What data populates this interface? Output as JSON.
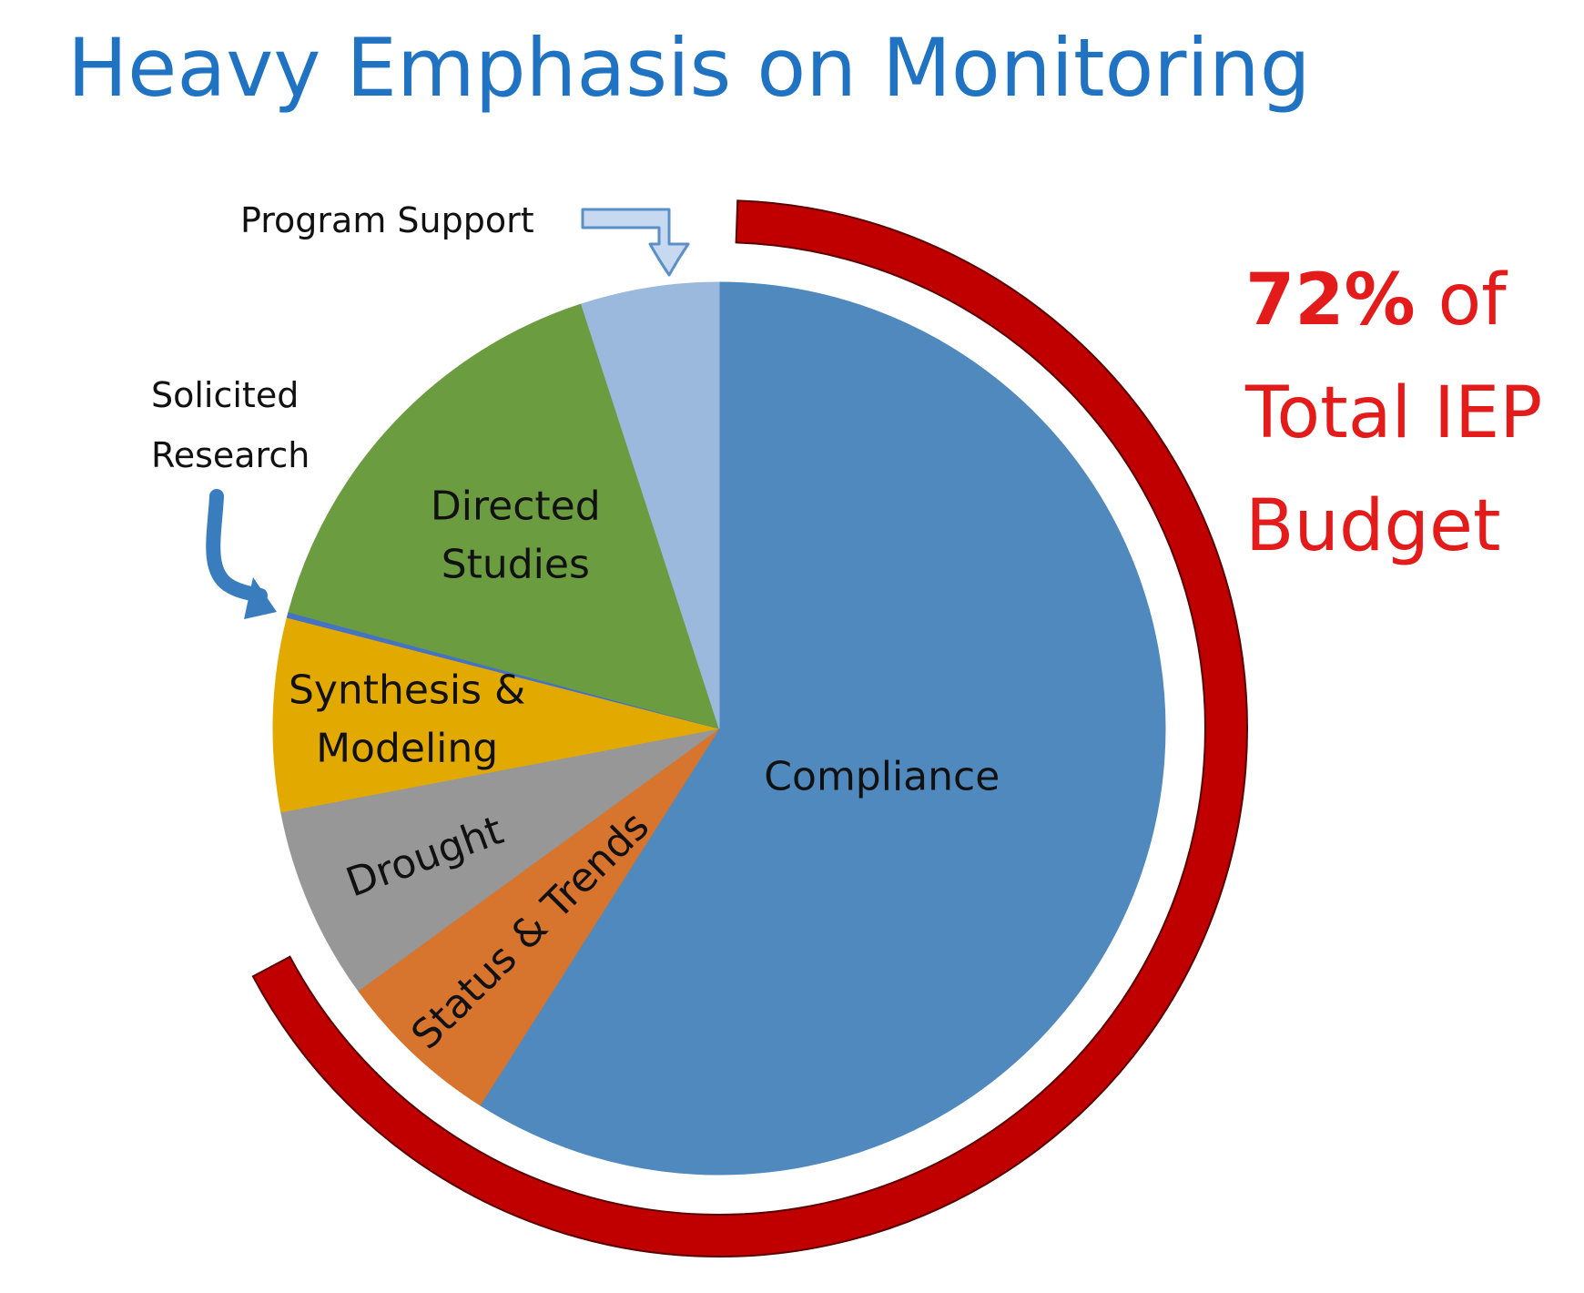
{
  "title": "Heavy Emphasis on Monitoring",
  "callout": {
    "percent": "72%",
    "of": " of",
    "line2": "Total IEP",
    "line3": "Budget",
    "color": "#e31b1b"
  },
  "colors": {
    "title": "#1f73c2",
    "ring": "#c00000",
    "arrow_dark": "#3a7dbf",
    "arrow_light_fill": "#c6d9f1",
    "arrow_light_stroke": "#5b8fc7"
  },
  "chart_data": {
    "type": "pie",
    "title": "",
    "start_angle_deg": 0,
    "direction": "clockwise",
    "slices": [
      {
        "label": "Compliance",
        "value": 59,
        "color": "#5089bd",
        "label_lines": [
          "Compliance"
        ],
        "label_rotate": 0
      },
      {
        "label": "Status & Trends",
        "value": 6,
        "color": "#d7742d",
        "label_lines": [
          "Status & Trends"
        ],
        "label_rotate": -45
      },
      {
        "label": "Drought",
        "value": 7,
        "color": "#979797",
        "label_lines": [
          "Drought"
        ],
        "label_rotate": -20
      },
      {
        "label": "Synthesis & Modeling",
        "value": 7,
        "color": "#e2aa00",
        "label_lines": [
          "Synthesis &",
          "Modeling"
        ],
        "label_rotate": 0
      },
      {
        "label": "Solicited Research",
        "value": 0.2,
        "color": "#4472c4",
        "label_lines": [],
        "label_rotate": 0
      },
      {
        "label": "Directed Studies",
        "value": 15.8,
        "color": "#6b9c40",
        "label_lines": [
          "Directed",
          "Studies"
        ],
        "label_rotate": 0
      },
      {
        "label": "Program Support",
        "value": 5,
        "color": "#9ab9dd",
        "label_lines": [],
        "label_rotate": 0
      }
    ],
    "external_labels": [
      {
        "name": "solicited-research-label",
        "lines": [
          "Solicited",
          "Research"
        ]
      },
      {
        "name": "program-support-label",
        "lines": [
          "Program Support"
        ]
      }
    ],
    "monitoring_share_percent": 72
  }
}
